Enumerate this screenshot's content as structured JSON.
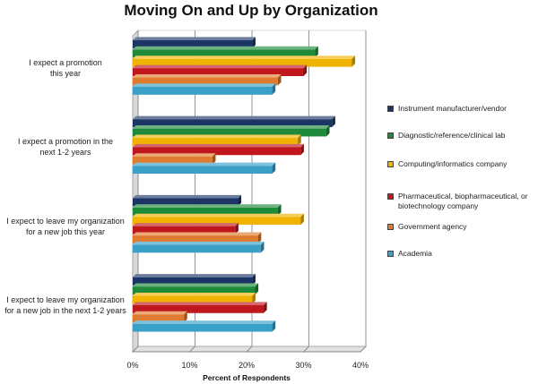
{
  "chart_data": {
    "type": "bar",
    "orientation": "horizontal",
    "title": "Moving On and Up by Organization",
    "xlabel": "Percent of Respondents",
    "ylabel": "",
    "xlim": [
      0,
      40
    ],
    "x_ticks": [
      "0%",
      "10%",
      "20%",
      "30%",
      "40%"
    ],
    "categories": [
      "I expect a promotion\nthis year",
      "I expect a promotion in the\nnext 1-2 years",
      "I expect to leave my organization\nfor a new job this year",
      "I expect to leave my organization\nfor a new job in the next 1-2 years"
    ],
    "series": [
      {
        "name": "Instrument manufacturer/vendor",
        "color": "#1c3566",
        "values": [
          21,
          35,
          18.5,
          21
        ]
      },
      {
        "name": "Diagnostic/reference/clinical lab",
        "color": "#1e8a3a",
        "values": [
          32,
          34,
          25.5,
          21.5
        ]
      },
      {
        "name": "Computing/informatics company",
        "color": "#f0b400",
        "values": [
          38.5,
          29,
          29.5,
          21
        ]
      },
      {
        "name": "Pharmaceutical, biopharmaceutical, or biotechnology company",
        "color": "#c0161e",
        "values": [
          30,
          29.5,
          18,
          23
        ]
      },
      {
        "name": "Government agency",
        "color": "#e07a2e",
        "values": [
          25.5,
          14,
          22,
          9
        ]
      },
      {
        "name": "Academia",
        "color": "#3aa0c8",
        "values": [
          24.5,
          24.5,
          22.5,
          24.5
        ]
      }
    ],
    "legend_position": "right",
    "grid": true
  }
}
